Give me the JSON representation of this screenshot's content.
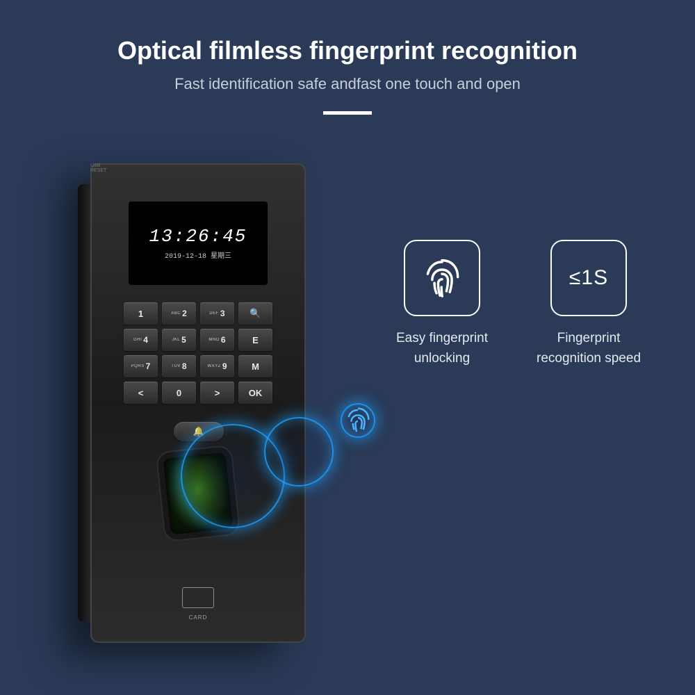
{
  "colors": {
    "background": "#2a3a57",
    "text_primary": "#ffffff",
    "text_secondary": "#c8cedb",
    "accent_glow": "#1ea0ff"
  },
  "headline": "Optical filmless fingerprint recognition",
  "subhead": "Fast identification safe andfast one touch and open",
  "device": {
    "screen": {
      "time": "13:26:45",
      "date": "2019-12-18 星期三"
    },
    "keypad": [
      {
        "main": "1",
        "sub": ""
      },
      {
        "main": "2",
        "sub": "ABC"
      },
      {
        "main": "3",
        "sub": "DEF"
      },
      {
        "main": "🔍",
        "sub": ""
      },
      {
        "main": "4",
        "sub": "GHI"
      },
      {
        "main": "5",
        "sub": "JKL"
      },
      {
        "main": "6",
        "sub": "MNO"
      },
      {
        "main": "E",
        "sub": ""
      },
      {
        "main": "7",
        "sub": "PQRS"
      },
      {
        "main": "8",
        "sub": "TUV"
      },
      {
        "main": "9",
        "sub": "WXYZ"
      },
      {
        "main": "M",
        "sub": ""
      },
      {
        "main": "<",
        "sub": ""
      },
      {
        "main": "0",
        "sub": ""
      },
      {
        "main": ">",
        "sub": ""
      },
      {
        "main": "OK",
        "sub": ""
      }
    ],
    "bell": "🔔",
    "card_label": "CARD",
    "side_labels": {
      "usb": "USB",
      "reset": "RESET"
    }
  },
  "features": [
    {
      "type": "fingerprint",
      "label_line1": "Easy fingerprint",
      "label_line2": "unlocking"
    },
    {
      "type": "speed",
      "value": "≤1S",
      "label_line1": "Fingerprint",
      "label_line2": "recognition speed"
    }
  ]
}
